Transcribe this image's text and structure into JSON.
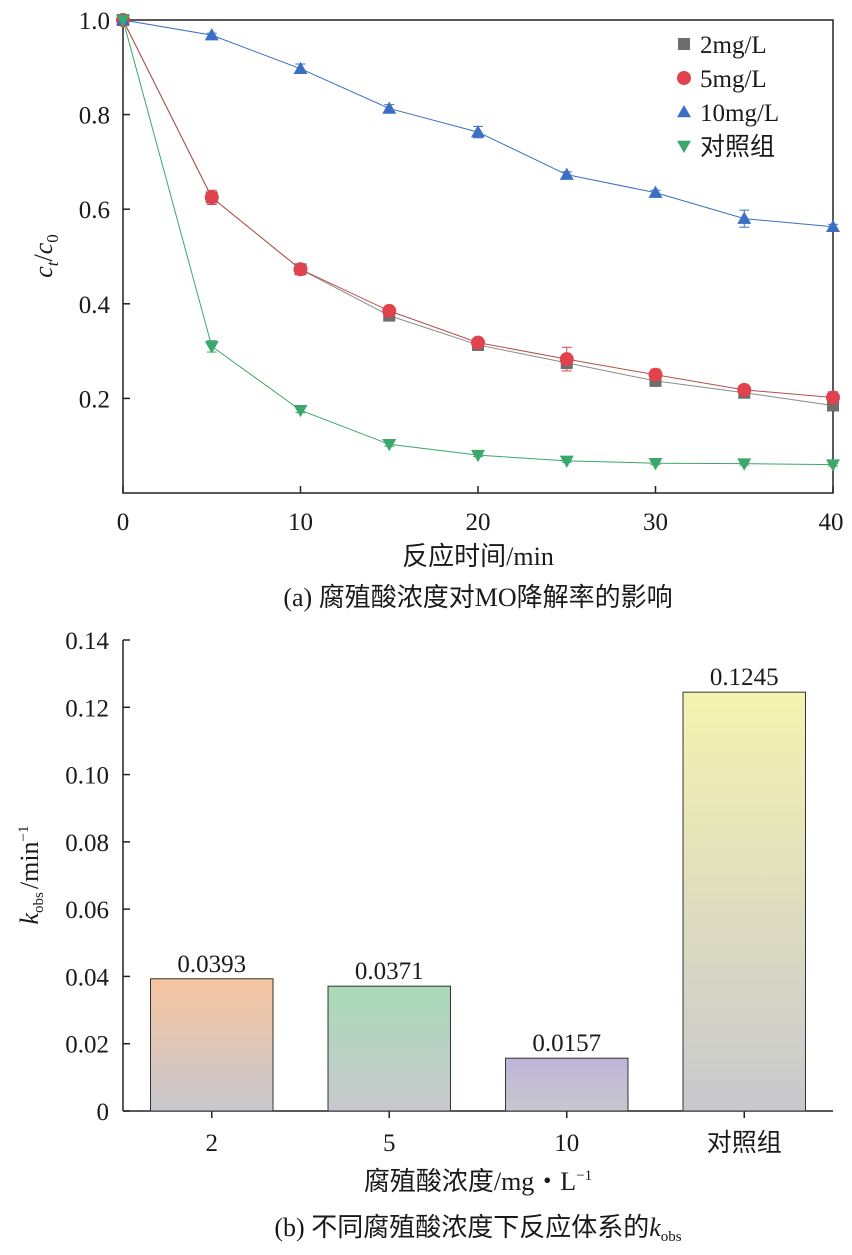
{
  "charts": [
    {
      "caption_prefix": "(a) ",
      "caption_text": "腐殖酸浓度对MO降解率的影响",
      "xlabel": "反应时间/min",
      "ylabel_c": "c",
      "ylabel_t": "t",
      "ylabel_slash": "/",
      "ylabel_0": "0",
      "xticks": [
        "0",
        "10",
        "20",
        "30",
        "40"
      ],
      "yticks": [
        "0.2",
        "0.4",
        "0.6",
        "0.8",
        "1.0"
      ]
    },
    {
      "caption_prefix": "(b) ",
      "caption_text": "不同腐殖酸浓度下反应体系的",
      "caption_k": "k",
      "caption_sub": "obs",
      "xlabel": "腐殖酸浓度/mg・L",
      "xlabel_sup": "−1",
      "ylabel_k": "k",
      "ylabel_sub": "obs",
      "ylabel_unit": "/min",
      "ylabel_sup": "−1",
      "yticks": [
        "0",
        "0.02",
        "0.04",
        "0.06",
        "0.08",
        "0.10",
        "0.12",
        "0.14"
      ]
    }
  ],
  "chart_data": [
    {
      "type": "line",
      "x": [
        0,
        5,
        10,
        15,
        20,
        25,
        30,
        35,
        40
      ],
      "xlim": [
        0,
        40
      ],
      "ylim": [
        0,
        1.0
      ],
      "grid": false,
      "legend_position": "top-right",
      "series": [
        {
          "name": "2mg/L",
          "marker": "square",
          "color": "#6e6e6e",
          "line_color": "#8a8a8a",
          "values": [
            1.0,
            0.625,
            0.473,
            0.375,
            0.313,
            0.275,
            0.237,
            0.212,
            0.185
          ],
          "errors": [
            0.0,
            0.01,
            0.005,
            0.006,
            0.005,
            0.012,
            0.006,
            0.006,
            0.006
          ]
        },
        {
          "name": "5mg/L",
          "marker": "circle",
          "color": "#e0434d",
          "line_color": "#b5504a",
          "values": [
            1.0,
            0.625,
            0.473,
            0.385,
            0.318,
            0.283,
            0.25,
            0.218,
            0.202
          ],
          "errors": [
            0.0,
            0.015,
            0.006,
            0.01,
            0.006,
            0.025,
            0.012,
            0.01,
            0.012
          ]
        },
        {
          "name": "10mg/L",
          "marker": "triangle-up",
          "color": "#3a6fc4",
          "line_color": "#3a6fc4",
          "values": [
            1.0,
            0.968,
            0.897,
            0.813,
            0.763,
            0.673,
            0.635,
            0.58,
            0.563
          ],
          "errors": [
            0.0,
            0.004,
            0.01,
            0.008,
            0.012,
            0.006,
            0.005,
            0.018,
            0.005
          ]
        },
        {
          "name": "对照组",
          "marker": "triangle-down",
          "color": "#3aa86a",
          "line_color": "#3aa86a",
          "values": [
            1.0,
            0.31,
            0.175,
            0.103,
            0.08,
            0.068,
            0.063,
            0.062,
            0.06
          ],
          "errors": [
            0.0,
            0.012,
            0.005,
            0.004,
            0.003,
            0.003,
            0.003,
            0.003,
            0.003
          ]
        }
      ]
    },
    {
      "type": "bar",
      "categories": [
        "2",
        "5",
        "10",
        "对照组"
      ],
      "values": [
        0.0393,
        0.0371,
        0.0157,
        0.1245
      ],
      "value_labels": [
        "0.0393",
        "0.0371",
        "0.0157",
        "0.1245"
      ],
      "bar_top_colors": [
        "#f6c4a0",
        "#a9dbb7",
        "#bfb4da",
        "#f5f3b0"
      ],
      "bar_bottom_color": "#c8c8ce",
      "ylim": [
        0,
        0.14
      ],
      "grid": false
    }
  ]
}
